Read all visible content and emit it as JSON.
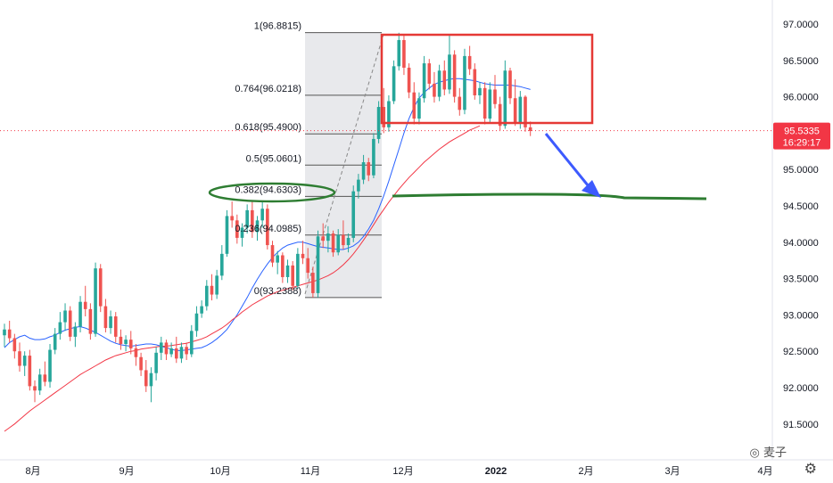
{
  "chart_data": {
    "type": "candlestick",
    "x_axis": {
      "ticks": [
        "8月",
        "9月",
        "10月",
        "11月",
        "12月",
        "2022",
        "2月",
        "3月",
        "4月"
      ]
    },
    "y_axis": {
      "ylim": [
        91.35,
        97.15
      ],
      "ticks": [
        "97.0000",
        "96.5000",
        "96.0000",
        "95.5000",
        "95.0000",
        "94.5000",
        "94.0000",
        "93.5000",
        "93.0000",
        "92.5000",
        "92.0000",
        "91.5000"
      ]
    },
    "current_price": {
      "value": "95.5335",
      "countdown": "16:29:17",
      "color": "#f23645"
    },
    "fibonacci": {
      "levels": [
        {
          "ratio": "1",
          "price": 96.8815,
          "label": "1(96.8815)"
        },
        {
          "ratio": "0.764",
          "price": 96.0218,
          "label": "0.764(96.0218)"
        },
        {
          "ratio": "0.618",
          "price": 95.49,
          "label": "0.618(95.4900)"
        },
        {
          "ratio": "0.5",
          "price": 95.0601,
          "label": "0.5(95.0601)"
        },
        {
          "ratio": "0.382",
          "price": 94.6303,
          "label": "0.382(94.6303)"
        },
        {
          "ratio": "0.236",
          "price": 94.0985,
          "label": "0.236(94.0985)"
        },
        {
          "ratio": "0",
          "price": 93.2388,
          "label": "0(93.2388)"
        }
      ]
    },
    "moving_averages": [
      {
        "color": "#2962ff",
        "values": [
          92.55,
          92.62,
          92.66,
          92.7,
          92.72,
          92.68,
          92.66,
          92.66,
          92.67,
          92.7,
          92.72,
          92.76,
          92.79,
          92.81,
          92.83,
          92.84,
          92.82,
          92.79,
          92.76,
          92.72,
          92.68,
          92.64,
          92.61,
          92.59,
          92.58,
          92.57,
          92.58,
          92.59,
          92.6,
          92.6,
          92.59,
          92.57,
          92.55,
          92.53,
          92.51,
          92.51,
          92.52,
          92.53,
          92.54,
          92.55,
          92.58,
          92.62,
          92.67,
          92.73,
          92.8,
          92.9,
          93.0,
          93.12,
          93.24,
          93.37,
          93.49,
          93.6,
          93.7,
          93.79,
          93.86,
          93.92,
          93.96,
          93.98,
          94.0,
          94.0,
          93.98,
          93.96,
          93.94,
          93.93,
          93.92,
          93.91,
          93.9,
          93.9,
          93.92,
          93.95,
          94.0,
          94.08,
          94.18,
          94.3,
          94.46,
          94.64,
          94.84,
          95.06,
          95.28,
          95.5,
          95.7,
          95.86,
          95.98,
          96.06,
          96.12,
          96.17,
          96.2,
          96.22,
          96.24,
          96.25,
          96.25,
          96.24,
          96.23,
          96.22,
          96.2,
          96.18,
          96.17,
          96.16,
          96.16,
          96.16,
          96.16,
          96.15,
          96.14,
          96.12,
          96.1
        ]
      },
      {
        "color": "#f23645",
        "values": [
          91.4,
          91.45,
          91.5,
          91.56,
          91.62,
          91.68,
          91.73,
          91.78,
          91.83,
          91.88,
          91.93,
          91.98,
          92.03,
          92.08,
          92.13,
          92.18,
          92.22,
          92.26,
          92.3,
          92.34,
          92.38,
          92.41,
          92.44,
          92.46,
          92.48,
          92.5,
          92.51,
          92.53,
          92.54,
          92.55,
          92.56,
          92.57,
          92.57,
          92.58,
          92.59,
          92.6,
          92.61,
          92.63,
          92.65,
          92.67,
          92.7,
          92.74,
          92.78,
          92.82,
          92.87,
          92.93,
          92.98,
          93.04,
          93.09,
          93.14,
          93.18,
          93.22,
          93.26,
          93.29,
          93.32,
          93.34,
          93.36,
          93.38,
          93.4,
          93.42,
          93.44,
          93.46,
          93.48,
          93.51,
          93.54,
          93.58,
          93.63,
          93.69,
          93.76,
          93.84,
          93.93,
          94.03,
          94.13,
          94.24,
          94.35,
          94.45,
          94.55,
          94.64,
          94.73,
          94.81,
          94.89,
          94.96,
          95.03,
          95.1,
          95.16,
          95.22,
          95.28,
          95.33,
          95.38,
          95.42,
          95.46,
          95.5,
          95.54,
          95.57,
          95.6
        ]
      }
    ],
    "candles": {
      "colors": {
        "up": "#26a69a",
        "down": "#ef5350"
      },
      "ohlc": [
        [
          92.72,
          92.88,
          92.56,
          92.8
        ],
        [
          92.8,
          92.92,
          92.62,
          92.68
        ],
        [
          92.68,
          92.74,
          92.4,
          92.5
        ],
        [
          92.5,
          92.62,
          92.22,
          92.3
        ],
        [
          92.3,
          92.5,
          92.16,
          92.44
        ],
        [
          92.44,
          92.52,
          91.96,
          92.02
        ],
        [
          92.02,
          92.1,
          91.8,
          91.96
        ],
        [
          91.96,
          92.26,
          91.9,
          92.18
        ],
        [
          92.18,
          92.36,
          92.02,
          92.08
        ],
        [
          92.08,
          92.6,
          92.0,
          92.52
        ],
        [
          92.52,
          92.82,
          92.46,
          92.74
        ],
        [
          92.74,
          93.04,
          92.66,
          92.9
        ],
        [
          92.9,
          93.16,
          92.78,
          93.06
        ],
        [
          93.06,
          93.12,
          92.64,
          92.7
        ],
        [
          92.7,
          92.9,
          92.56,
          92.84
        ],
        [
          92.84,
          93.26,
          92.76,
          93.18
        ],
        [
          93.18,
          93.4,
          92.98,
          93.08
        ],
        [
          93.08,
          93.16,
          92.66,
          92.74
        ],
        [
          92.74,
          93.72,
          92.7,
          93.64
        ],
        [
          93.64,
          93.7,
          93.04,
          93.12
        ],
        [
          93.12,
          93.22,
          92.76,
          92.82
        ],
        [
          92.82,
          93.06,
          92.74,
          92.98
        ],
        [
          92.98,
          93.04,
          92.62,
          92.7
        ],
        [
          92.7,
          92.8,
          92.52,
          92.6
        ],
        [
          92.6,
          92.72,
          92.5,
          92.66
        ],
        [
          92.66,
          92.78,
          92.46,
          92.54
        ],
        [
          92.54,
          92.6,
          92.3,
          92.42
        ],
        [
          92.42,
          92.48,
          92.16,
          92.24
        ],
        [
          92.24,
          92.38,
          91.94,
          92.02
        ],
        [
          92.02,
          92.28,
          91.8,
          92.2
        ],
        [
          92.2,
          92.56,
          92.1,
          92.48
        ],
        [
          92.48,
          92.7,
          92.38,
          92.62
        ],
        [
          92.62,
          92.66,
          92.38,
          92.46
        ],
        [
          92.46,
          92.62,
          92.42,
          92.54
        ],
        [
          92.54,
          92.7,
          92.34,
          92.4
        ],
        [
          92.4,
          92.62,
          92.34,
          92.56
        ],
        [
          92.56,
          92.62,
          92.38,
          92.46
        ],
        [
          92.46,
          92.86,
          92.42,
          92.78
        ],
        [
          92.78,
          93.12,
          92.7,
          93.02
        ],
        [
          93.02,
          93.2,
          92.96,
          93.12
        ],
        [
          93.12,
          93.48,
          93.06,
          93.4
        ],
        [
          93.4,
          93.56,
          93.2,
          93.28
        ],
        [
          93.28,
          93.62,
          93.22,
          93.54
        ],
        [
          93.54,
          93.96,
          93.48,
          93.84
        ],
        [
          93.84,
          94.44,
          93.8,
          94.36
        ],
        [
          94.36,
          94.56,
          94.2,
          94.3
        ],
        [
          94.3,
          94.38,
          93.98,
          94.06
        ],
        [
          94.06,
          94.26,
          93.94,
          94.2
        ],
        [
          94.2,
          94.52,
          94.12,
          94.44
        ],
        [
          94.44,
          94.56,
          94.06,
          94.14
        ],
        [
          94.14,
          94.36,
          94.02,
          94.3
        ],
        [
          94.3,
          94.56,
          94.2,
          94.46
        ],
        [
          94.46,
          94.52,
          93.9,
          93.96
        ],
        [
          93.96,
          94.02,
          93.66,
          93.72
        ],
        [
          93.72,
          93.88,
          93.56,
          93.82
        ],
        [
          93.82,
          93.86,
          93.44,
          93.52
        ],
        [
          93.52,
          93.76,
          93.44,
          93.68
        ],
        [
          93.68,
          93.74,
          93.34,
          93.4
        ],
        [
          93.4,
          93.92,
          93.36,
          93.84
        ],
        [
          93.84,
          94.02,
          93.7,
          93.78
        ],
        [
          93.78,
          93.92,
          93.5,
          93.58
        ],
        [
          93.58,
          93.66,
          93.24,
          93.3
        ],
        [
          93.3,
          94.16,
          93.24,
          94.08
        ],
        [
          94.08,
          94.26,
          93.92,
          94.02
        ],
        [
          94.02,
          94.22,
          93.86,
          94.12
        ],
        [
          94.12,
          94.16,
          93.8,
          93.86
        ],
        [
          93.86,
          94.18,
          93.82,
          94.1
        ],
        [
          94.1,
          94.3,
          93.9,
          93.96
        ],
        [
          93.96,
          94.12,
          93.86,
          94.06
        ],
        [
          94.06,
          94.78,
          94.0,
          94.7
        ],
        [
          94.7,
          94.94,
          94.6,
          94.86
        ],
        [
          94.86,
          95.2,
          94.8,
          95.1
        ],
        [
          95.1,
          95.16,
          94.84,
          94.92
        ],
        [
          94.92,
          95.5,
          94.88,
          95.42
        ],
        [
          95.42,
          95.94,
          95.36,
          95.86
        ],
        [
          95.86,
          96.12,
          95.5,
          95.58
        ],
        [
          95.58,
          96.02,
          95.52,
          95.94
        ],
        [
          95.94,
          96.5,
          95.9,
          96.42
        ],
        [
          96.42,
          96.88,
          96.36,
          96.78
        ],
        [
          96.78,
          96.84,
          96.3,
          96.4
        ],
        [
          96.4,
          96.46,
          95.98,
          96.06
        ],
        [
          96.06,
          96.2,
          95.62,
          95.7
        ],
        [
          95.7,
          96.06,
          95.62,
          95.98
        ],
        [
          95.98,
          96.56,
          95.92,
          96.46
        ],
        [
          96.46,
          96.52,
          96.1,
          96.18
        ],
        [
          96.18,
          96.34,
          95.92,
          96.0
        ],
        [
          96.0,
          96.44,
          95.94,
          96.36
        ],
        [
          96.36,
          96.5,
          96.02,
          96.1
        ],
        [
          96.1,
          96.86,
          96.04,
          96.58
        ],
        [
          96.58,
          96.64,
          95.92,
          96.0
        ],
        [
          96.0,
          96.12,
          95.74,
          95.82
        ],
        [
          95.82,
          96.66,
          95.76,
          96.56
        ],
        [
          96.56,
          96.7,
          96.3,
          96.38
        ],
        [
          96.38,
          96.46,
          95.96,
          96.02
        ],
        [
          96.02,
          96.2,
          95.9,
          96.12
        ],
        [
          96.12,
          96.2,
          95.62,
          95.7
        ],
        [
          95.7,
          96.2,
          95.64,
          96.1
        ],
        [
          96.1,
          96.3,
          95.84,
          95.9
        ],
        [
          95.9,
          96.0,
          95.54,
          95.6
        ],
        [
          95.6,
          96.5,
          95.56,
          96.36
        ],
        [
          96.36,
          96.4,
          95.9,
          95.98
        ],
        [
          95.98,
          96.24,
          95.6,
          95.64
        ],
        [
          95.64,
          96.08,
          95.56,
          96.0
        ],
        [
          96.0,
          96.02,
          95.52,
          95.58
        ],
        [
          95.58,
          95.66,
          95.46,
          95.53
        ]
      ]
    }
  }
}
